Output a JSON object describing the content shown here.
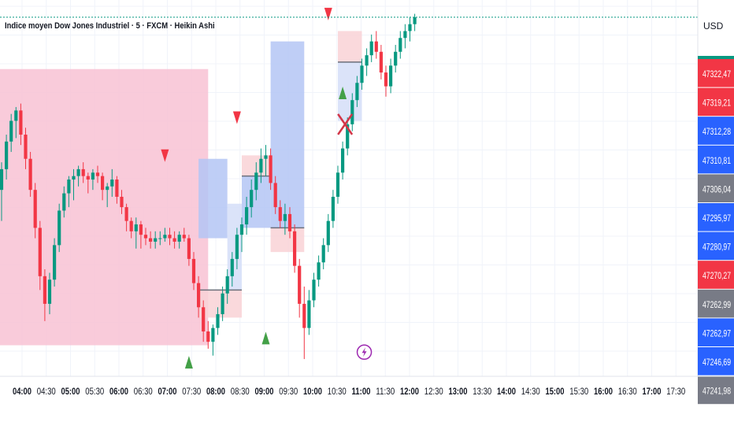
{
  "header": {
    "title": "Indice moyen Dow Jones Industriel · 5 · FXCM · Heikin Ashi",
    "currency": "USD"
  },
  "colors": {
    "up": "#089981",
    "down": "#f23645",
    "pink_zone": "#f8c2d3",
    "blue_zone": "#b4c5f5",
    "light_blue_zone": "#d5def8",
    "light_pink_zone": "#f9d2d6",
    "arrow_up": "#43a047",
    "arrow_down": "#f23645",
    "x_mark": "#d33648",
    "lightning": "#9c27b0",
    "label_red": "#f23645",
    "label_blue": "#2962ff",
    "label_gray": "#787b86"
  },
  "chart_data": {
    "type": "candlestick",
    "title": "Indice moyen Dow Jones Industriel · 5 · FXCM · Heikin Ashi",
    "ylim": [
      47236,
      47345
    ],
    "price_labels": [
      {
        "text": "47322,47",
        "color": "red"
      },
      {
        "text": "47319,21",
        "color": "red"
      },
      {
        "text": "47312,28",
        "color": "blue"
      },
      {
        "text": "47310,81",
        "color": "blue"
      },
      {
        "text": "47306,04",
        "color": "gray"
      },
      {
        "text": "47295,97",
        "color": "blue"
      },
      {
        "text": "47280,97",
        "color": "blue"
      },
      {
        "text": "47270,27",
        "color": "red"
      },
      {
        "text": "47262,99",
        "color": "gray"
      },
      {
        "text": "47262,97",
        "color": "blue"
      },
      {
        "text": "47246,69",
        "color": "blue"
      },
      {
        "text": "47241,98",
        "color": "gray"
      }
    ],
    "x_ticks": [
      {
        "label": "04:00",
        "bold": true
      },
      {
        "label": "04:30",
        "bold": false
      },
      {
        "label": "05:00",
        "bold": true
      },
      {
        "label": "05:30",
        "bold": false
      },
      {
        "label": "06:00",
        "bold": true
      },
      {
        "label": "06:30",
        "bold": false
      },
      {
        "label": "07:00",
        "bold": true
      },
      {
        "label": "07:30",
        "bold": false
      },
      {
        "label": "08:00",
        "bold": true
      },
      {
        "label": "08:30",
        "bold": false
      },
      {
        "label": "09:00",
        "bold": true
      },
      {
        "label": "09:30",
        "bold": false
      },
      {
        "label": "10:00",
        "bold": true
      },
      {
        "label": "10:30",
        "bold": false
      },
      {
        "label": "11:00",
        "bold": true
      },
      {
        "label": "11:30",
        "bold": false
      },
      {
        "label": "12:00",
        "bold": true
      },
      {
        "label": "12:30",
        "bold": false
      },
      {
        "label": "13:00",
        "bold": true
      },
      {
        "label": "13:30",
        "bold": false
      },
      {
        "label": "14:00",
        "bold": true
      },
      {
        "label": "14:30",
        "bold": false
      },
      {
        "label": "15:00",
        "bold": true
      },
      {
        "label": "15:30",
        "bold": false
      },
      {
        "label": "16:00",
        "bold": true
      },
      {
        "label": "16:30",
        "bold": false
      },
      {
        "label": "17:00",
        "bold": true
      },
      {
        "label": "17:30",
        "bold": false
      }
    ],
    "candles": [
      [
        47290,
        47298,
        47281,
        47296
      ],
      [
        47296,
        47306,
        47293,
        47304
      ],
      [
        47304,
        47312,
        47301,
        47310
      ],
      [
        47310,
        47314,
        47305,
        47313
      ],
      [
        47313,
        47315,
        47303,
        47306
      ],
      [
        47306,
        47308,
        47296,
        47299
      ],
      [
        47299,
        47301,
        47288,
        47290
      ],
      [
        47290,
        47292,
        47276,
        47279
      ],
      [
        47279,
        47281,
        47261,
        47265
      ],
      [
        47265,
        47267,
        47252,
        47257
      ],
      [
        47257,
        47266,
        47254,
        47264
      ],
      [
        47264,
        47276,
        47262,
        47274
      ],
      [
        47274,
        47286,
        47272,
        47284
      ],
      [
        47284,
        47291,
        47282,
        47289
      ],
      [
        47289,
        47294,
        47285,
        47293
      ],
      [
        47293,
        47296,
        47287,
        47294
      ],
      [
        47294,
        47297,
        47291,
        47296
      ],
      [
        47296,
        47298,
        47292,
        47294
      ],
      [
        47294,
        47295,
        47289,
        47293
      ],
      [
        47293,
        47296,
        47290,
        47295
      ],
      [
        47295,
        47297,
        47292,
        47294
      ],
      [
        47294,
        47295,
        47287,
        47290
      ],
      [
        47290,
        47292,
        47285,
        47291
      ],
      [
        47291,
        47296,
        47288,
        47293
      ],
      [
        47293,
        47294,
        47286,
        47288
      ],
      [
        47288,
        47290,
        47283,
        47285
      ],
      [
        47285,
        47286,
        47278,
        47281
      ],
      [
        47281,
        47282,
        47276,
        47278
      ],
      [
        47278,
        47282,
        47273,
        47280
      ],
      [
        47280,
        47281,
        47273,
        47277
      ],
      [
        47277,
        47279,
        47274,
        47276
      ],
      [
        47276,
        47278,
        47273,
        47275
      ],
      [
        47275,
        47278,
        47273,
        47276
      ],
      [
        47276,
        47278,
        47274,
        47276
      ],
      [
        47276,
        47279,
        47275,
        47277
      ],
      [
        47277,
        47279,
        47274,
        47276
      ],
      [
        47276,
        47278,
        47273,
        47275
      ],
      [
        47275,
        47278,
        47273,
        47277
      ],
      [
        47277,
        47279,
        47275,
        47276
      ],
      [
        47276,
        47277,
        47268,
        47270
      ],
      [
        47270,
        47272,
        47261,
        47263
      ],
      [
        47263,
        47265,
        47253,
        47256
      ],
      [
        47256,
        47258,
        47246,
        47249
      ],
      [
        47249,
        47252,
        47244,
        47246
      ],
      [
        47246,
        47251,
        47242,
        47250
      ],
      [
        47250,
        47256,
        47248,
        47254
      ],
      [
        47254,
        47262,
        47252,
        47260
      ],
      [
        47260,
        47267,
        47257,
        47265
      ],
      [
        47265,
        47272,
        47262,
        47270
      ],
      [
        47270,
        47279,
        47267,
        47277
      ],
      [
        47277,
        47282,
        47272,
        47280
      ],
      [
        47280,
        47288,
        47277,
        47285
      ],
      [
        47285,
        47293,
        47282,
        47290
      ],
      [
        47290,
        47298,
        47287,
        47295
      ],
      [
        47295,
        47302,
        47292,
        47299
      ],
      [
        47299,
        47303,
        47294,
        47300
      ],
      [
        47300,
        47302,
        47290,
        47292
      ],
      [
        47292,
        47294,
        47283,
        47285
      ],
      [
        47285,
        47287,
        47279,
        47281
      ],
      [
        47281,
        47286,
        47277,
        47283
      ],
      [
        47283,
        47285,
        47276,
        47278
      ],
      [
        47278,
        47280,
        47266,
        47268
      ],
      [
        47268,
        47270,
        47253,
        47257
      ],
      [
        47257,
        47262,
        47241,
        47250
      ],
      [
        47250,
        47261,
        47248,
        47258
      ],
      [
        47258,
        47266,
        47256,
        47264
      ],
      [
        47264,
        47271,
        47262,
        47269
      ],
      [
        47269,
        47276,
        47267,
        47274
      ],
      [
        47274,
        47283,
        47272,
        47281
      ],
      [
        47281,
        47290,
        47279,
        47288
      ],
      [
        47288,
        47297,
        47286,
        47295
      ],
      [
        47295,
        47304,
        47293,
        47302
      ],
      [
        47302,
        47311,
        47300,
        47309
      ],
      [
        47309,
        47318,
        47307,
        47316
      ],
      [
        47316,
        47323,
        47314,
        47321
      ],
      [
        47321,
        47328,
        47319,
        47326
      ],
      [
        47326,
        47331,
        47323,
        47329
      ],
      [
        47329,
        47335,
        47327,
        47333
      ],
      [
        47333,
        47336,
        47328,
        47330
      ],
      [
        47330,
        47332,
        47322,
        47324
      ],
      [
        47324,
        47326,
        47317,
        47320
      ],
      [
        47320,
        47328,
        47318,
        47326
      ],
      [
        47326,
        47332,
        47324,
        47330
      ],
      [
        47330,
        47336,
        47328,
        47334
      ],
      [
        47334,
        47338,
        47331,
        47336
      ],
      [
        47336,
        47340,
        47333,
        47338
      ],
      [
        47338,
        47341,
        47336,
        47340
      ]
    ],
    "zones": [
      {
        "x0": -2,
        "x1": 43,
        "top": 47325,
        "bottom": 47245,
        "fill": "pink_zone"
      },
      {
        "x0": 41,
        "x1": 47,
        "top": 47299,
        "bottom": 47276,
        "fill": "blue_zone"
      },
      {
        "x0": 47,
        "x1": 50,
        "top": 47286,
        "bottom": 47261,
        "fill": "light_blue_zone"
      },
      {
        "x0": 41,
        "x1": 50,
        "top": 47261,
        "bottom": 47253,
        "fill": "light_pink_zone"
      },
      {
        "x0": 50,
        "x1": 56,
        "top": 47300,
        "bottom": 47294,
        "fill": "light_pink_zone"
      },
      {
        "x0": 50,
        "x1": 56,
        "top": 47294,
        "bottom": 47279,
        "fill": "blue_zone"
      },
      {
        "x0": 56,
        "x1": 63,
        "top": 47333,
        "bottom": 47279,
        "fill": "blue_zone"
      },
      {
        "x0": 56,
        "x1": 63,
        "top": 47279,
        "bottom": 47272,
        "fill": "light_pink_zone"
      },
      {
        "x0": 70,
        "x1": 75,
        "top": 47336,
        "bottom": 47327,
        "fill": "light_pink_zone"
      },
      {
        "x0": 70,
        "x1": 75,
        "top": 47327,
        "bottom": 47310,
        "fill": "light_blue_zone"
      }
    ],
    "arrows": [
      {
        "dir": "down",
        "x": 34,
        "price": 47299
      },
      {
        "dir": "up",
        "x": 39,
        "price": 47241
      },
      {
        "dir": "down",
        "x": 49,
        "price": 47310
      },
      {
        "dir": "up",
        "x": 55,
        "price": 47248
      },
      {
        "dir": "down",
        "x": 68,
        "price": 47340
      },
      {
        "dir": "up",
        "x": 71,
        "price": 47319
      }
    ],
    "x_marker": {
      "x": 71.5,
      "price": 47309
    },
    "lightning_marker": {
      "x": 75.5,
      "price": 47243
    }
  }
}
